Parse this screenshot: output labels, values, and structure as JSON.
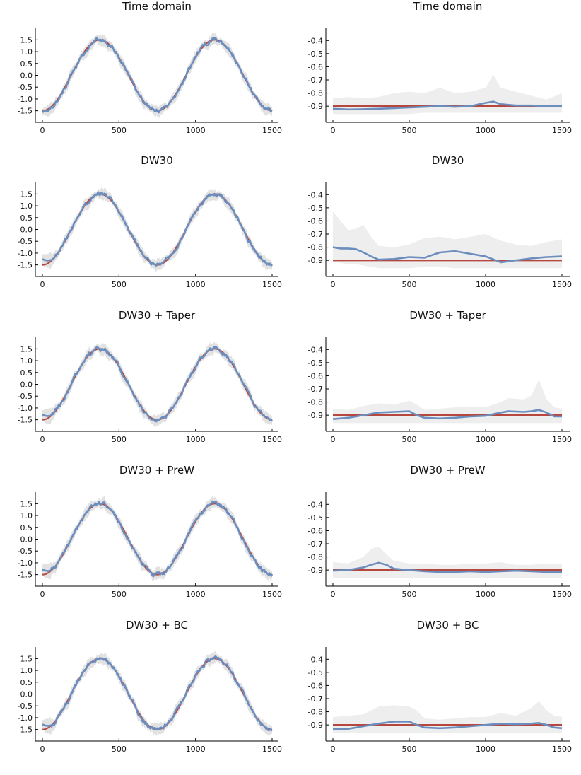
{
  "colors": {
    "truth": "#b5473e",
    "estimate": "#6c8ebf",
    "band": "#e2e2e2",
    "band_light": "#eeeeee"
  },
  "chart_data": [
    {
      "id": "p1l",
      "type": "line",
      "title": "Time domain",
      "kind": "time",
      "method": "time",
      "xlim": [
        0,
        1500
      ],
      "ylim": [
        -1.75,
        1.75
      ],
      "xticks": [
        0,
        500,
        1000,
        1500
      ],
      "yticks": [
        -1.5,
        -1.0,
        -0.5,
        0.0,
        0.5,
        1.0,
        1.5
      ]
    },
    {
      "id": "p1r",
      "type": "line",
      "title": "Time domain",
      "kind": "param",
      "xlim": [
        0,
        1500
      ],
      "ylim": [
        -0.98,
        -0.35
      ],
      "xticks": [
        0,
        500,
        1000,
        1500
      ],
      "yticks": [
        -0.9,
        -0.8,
        -0.7,
        -0.6,
        -0.5,
        -0.4
      ],
      "truth": -0.9,
      "x": [
        0,
        100,
        200,
        300,
        400,
        500,
        600,
        700,
        800,
        900,
        1000,
        1050,
        1100,
        1200,
        1300,
        1400,
        1500
      ],
      "estimate": [
        -0.92,
        -0.925,
        -0.923,
        -0.92,
        -0.915,
        -0.91,
        -0.905,
        -0.9,
        -0.905,
        -0.9,
        -0.875,
        -0.865,
        -0.885,
        -0.895,
        -0.895,
        -0.9,
        -0.9
      ],
      "band_upper": [
        -0.84,
        -0.83,
        -0.84,
        -0.83,
        -0.8,
        -0.79,
        -0.8,
        -0.76,
        -0.8,
        -0.79,
        -0.76,
        -0.66,
        -0.76,
        -0.79,
        -0.82,
        -0.85,
        -0.8
      ],
      "band_lower": [
        -0.96,
        -0.96,
        -0.96,
        -0.96,
        -0.96,
        -0.96,
        -0.95,
        -0.95,
        -0.95,
        -0.95,
        -0.95,
        -0.95,
        -0.95,
        -0.95,
        -0.95,
        -0.95,
        -0.95
      ]
    },
    {
      "id": "p2l",
      "type": "line",
      "title": "DW30",
      "kind": "time",
      "method": "dw",
      "xlim": [
        0,
        1500
      ],
      "ylim": [
        -1.75,
        1.75
      ],
      "xticks": [
        0,
        500,
        1000,
        1500
      ],
      "yticks": [
        -1.5,
        -1.0,
        -0.5,
        0.0,
        0.5,
        1.0,
        1.5
      ]
    },
    {
      "id": "p2r",
      "type": "line",
      "title": "DW30",
      "kind": "param",
      "xlim": [
        0,
        1500
      ],
      "ylim": [
        -0.98,
        -0.35
      ],
      "xticks": [
        0,
        500,
        1000,
        1500
      ],
      "yticks": [
        -0.9,
        -0.8,
        -0.7,
        -0.6,
        -0.5,
        -0.4
      ],
      "truth": -0.9,
      "x": [
        0,
        50,
        100,
        150,
        200,
        250,
        300,
        400,
        500,
        600,
        700,
        800,
        900,
        1000,
        1100,
        1200,
        1300,
        1400,
        1500
      ],
      "estimate": [
        -0.8,
        -0.81,
        -0.81,
        -0.815,
        -0.84,
        -0.87,
        -0.895,
        -0.89,
        -0.875,
        -0.88,
        -0.84,
        -0.83,
        -0.85,
        -0.87,
        -0.915,
        -0.9,
        -0.885,
        -0.875,
        -0.87
      ],
      "band_upper": [
        -0.53,
        -0.6,
        -0.67,
        -0.66,
        -0.63,
        -0.72,
        -0.79,
        -0.8,
        -0.78,
        -0.73,
        -0.72,
        -0.74,
        -0.72,
        -0.7,
        -0.75,
        -0.78,
        -0.79,
        -0.76,
        -0.74
      ],
      "band_lower": [
        -0.91,
        -0.92,
        -0.93,
        -0.93,
        -0.94,
        -0.95,
        -0.96,
        -0.96,
        -0.96,
        -0.95,
        -0.95,
        -0.96,
        -0.96,
        -0.96,
        -0.96,
        -0.96,
        -0.96,
        -0.96,
        -0.96
      ]
    },
    {
      "id": "p3l",
      "type": "line",
      "title": "DW30 + Taper",
      "kind": "time",
      "method": "taper",
      "xlim": [
        0,
        1500
      ],
      "ylim": [
        -1.75,
        1.75
      ],
      "xticks": [
        0,
        500,
        1000,
        1500
      ],
      "yticks": [
        -1.5,
        -1.0,
        -0.5,
        0.0,
        0.5,
        1.0,
        1.5
      ]
    },
    {
      "id": "p3r",
      "type": "line",
      "title": "DW30 + Taper",
      "kind": "param",
      "xlim": [
        0,
        1500
      ],
      "ylim": [
        -0.98,
        -0.35
      ],
      "xticks": [
        0,
        500,
        1000,
        1500
      ],
      "yticks": [
        -0.9,
        -0.8,
        -0.7,
        -0.6,
        -0.5,
        -0.4
      ],
      "truth": -0.9,
      "x": [
        0,
        100,
        200,
        300,
        400,
        500,
        550,
        600,
        700,
        800,
        900,
        1000,
        1100,
        1150,
        1250,
        1300,
        1350,
        1400,
        1450,
        1500
      ],
      "estimate": [
        -0.93,
        -0.92,
        -0.9,
        -0.88,
        -0.875,
        -0.87,
        -0.9,
        -0.92,
        -0.925,
        -0.92,
        -0.91,
        -0.905,
        -0.88,
        -0.87,
        -0.875,
        -0.87,
        -0.86,
        -0.88,
        -0.91,
        -0.91
      ],
      "band_upper": [
        -0.85,
        -0.86,
        -0.83,
        -0.81,
        -0.82,
        -0.79,
        -0.82,
        -0.86,
        -0.85,
        -0.84,
        -0.84,
        -0.84,
        -0.8,
        -0.77,
        -0.78,
        -0.75,
        -0.63,
        -0.78,
        -0.84,
        -0.85
      ],
      "band_lower": [
        -0.96,
        -0.96,
        -0.96,
        -0.96,
        -0.96,
        -0.96,
        -0.96,
        -0.96,
        -0.96,
        -0.96,
        -0.96,
        -0.96,
        -0.96,
        -0.96,
        -0.96,
        -0.96,
        -0.96,
        -0.96,
        -0.96,
        -0.96
      ]
    },
    {
      "id": "p4l",
      "type": "line",
      "title": "DW30 + PreW",
      "kind": "time",
      "method": "prew",
      "xlim": [
        0,
        1500
      ],
      "ylim": [
        -1.75,
        1.75
      ],
      "xticks": [
        0,
        500,
        1000,
        1500
      ],
      "yticks": [
        -1.5,
        -1.0,
        -0.5,
        0.0,
        0.5,
        1.0,
        1.5
      ]
    },
    {
      "id": "p4r",
      "type": "line",
      "title": "DW30 + PreW",
      "kind": "param",
      "xlim": [
        0,
        1500
      ],
      "ylim": [
        -0.98,
        -0.35
      ],
      "xticks": [
        0,
        500,
        1000,
        1500
      ],
      "yticks": [
        -0.9,
        -0.8,
        -0.7,
        -0.6,
        -0.5,
        -0.4
      ],
      "truth": -0.9,
      "x": [
        0,
        100,
        200,
        250,
        300,
        350,
        400,
        500,
        600,
        700,
        800,
        900,
        1000,
        1100,
        1200,
        1300,
        1400,
        1500
      ],
      "estimate": [
        -0.905,
        -0.9,
        -0.88,
        -0.86,
        -0.845,
        -0.86,
        -0.89,
        -0.9,
        -0.91,
        -0.915,
        -0.915,
        -0.91,
        -0.915,
        -0.91,
        -0.905,
        -0.91,
        -0.915,
        -0.915
      ],
      "band_upper": [
        -0.84,
        -0.85,
        -0.8,
        -0.74,
        -0.72,
        -0.78,
        -0.83,
        -0.85,
        -0.85,
        -0.86,
        -0.86,
        -0.85,
        -0.85,
        -0.84,
        -0.86,
        -0.86,
        -0.85,
        -0.85
      ],
      "band_lower": [
        -0.96,
        -0.96,
        -0.96,
        -0.96,
        -0.96,
        -0.96,
        -0.96,
        -0.96,
        -0.96,
        -0.96,
        -0.96,
        -0.96,
        -0.96,
        -0.96,
        -0.96,
        -0.96,
        -0.96,
        -0.96
      ]
    },
    {
      "id": "p5l",
      "type": "line",
      "title": "DW30 + BC",
      "kind": "time",
      "method": "bc",
      "xlim": [
        0,
        1500
      ],
      "ylim": [
        -1.75,
        1.75
      ],
      "xticks": [
        0,
        500,
        1000,
        1500
      ],
      "yticks": [
        -1.5,
        -1.0,
        -0.5,
        0.0,
        0.5,
        1.0,
        1.5
      ]
    },
    {
      "id": "p5r",
      "type": "line",
      "title": "DW30 + BC",
      "kind": "param",
      "xlim": [
        0,
        1500
      ],
      "ylim": [
        -0.98,
        -0.35
      ],
      "xticks": [
        0,
        500,
        1000,
        1500
      ],
      "yticks": [
        -0.9,
        -0.8,
        -0.7,
        -0.6,
        -0.5,
        -0.4
      ],
      "truth": -0.9,
      "x": [
        0,
        100,
        200,
        300,
        400,
        500,
        550,
        600,
        700,
        800,
        900,
        1000,
        1100,
        1200,
        1300,
        1350,
        1400,
        1450,
        1500
      ],
      "estimate": [
        -0.93,
        -0.93,
        -0.91,
        -0.89,
        -0.875,
        -0.875,
        -0.9,
        -0.92,
        -0.925,
        -0.92,
        -0.91,
        -0.9,
        -0.89,
        -0.895,
        -0.89,
        -0.885,
        -0.9,
        -0.92,
        -0.925
      ],
      "band_upper": [
        -0.84,
        -0.83,
        -0.82,
        -0.76,
        -0.75,
        -0.76,
        -0.79,
        -0.85,
        -0.86,
        -0.85,
        -0.84,
        -0.84,
        -0.81,
        -0.83,
        -0.77,
        -0.72,
        -0.79,
        -0.83,
        -0.84
      ],
      "band_lower": [
        -0.96,
        -0.96,
        -0.96,
        -0.96,
        -0.96,
        -0.96,
        -0.96,
        -0.96,
        -0.96,
        -0.96,
        -0.96,
        -0.96,
        -0.96,
        -0.96,
        -0.96,
        -0.96,
        -0.96,
        -0.96,
        -0.96
      ]
    }
  ]
}
